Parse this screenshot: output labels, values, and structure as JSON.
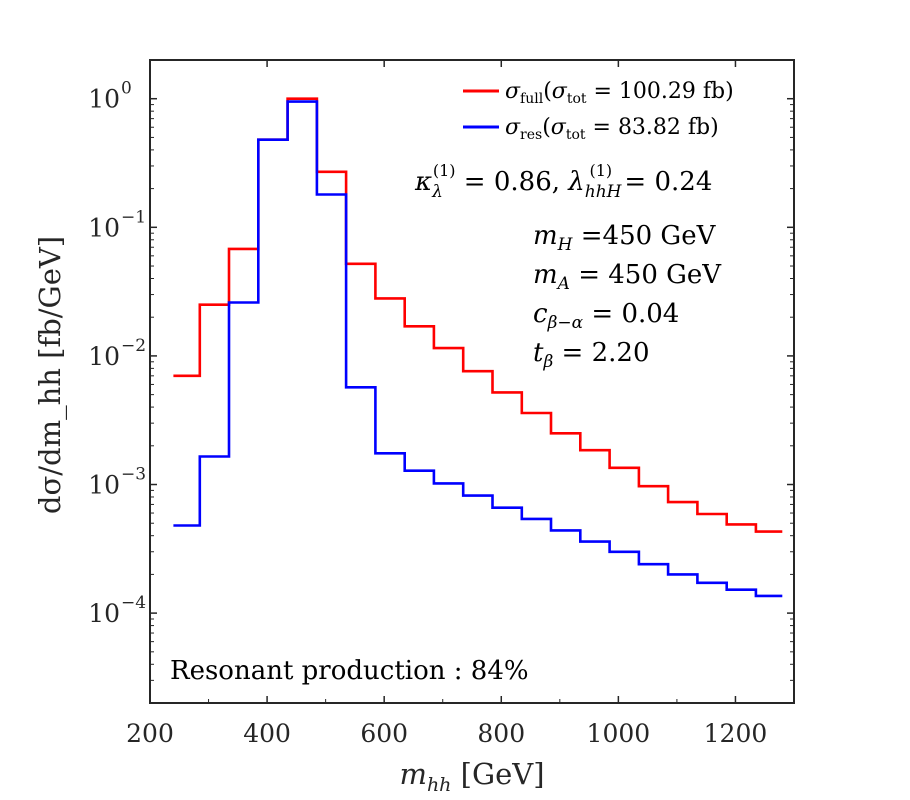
{
  "chart_data": {
    "type": "line",
    "step": true,
    "y_scale": "log",
    "xlim": [
      200,
      1300
    ],
    "ylim": [
      2e-05,
      2
    ],
    "xticks": [
      200,
      400,
      600,
      800,
      1000,
      1200
    ],
    "yticks": [
      0.0001,
      0.001,
      0.01,
      0.1,
      1
    ],
    "xtick_labels": [
      "200",
      "400",
      "600",
      "800",
      "1000",
      "1200"
    ],
    "ytick_labels": [
      {
        "base": "10",
        "exp": "−4"
      },
      {
        "base": "10",
        "exp": "−3"
      },
      {
        "base": "10",
        "exp": "−2"
      },
      {
        "base": "10",
        "exp": "−1"
      },
      {
        "base": "10",
        "exp": "0"
      }
    ],
    "xlabel": {
      "var": "m",
      "sub": "hh",
      "unit": "[GeV]"
    },
    "ylabel": "dσ/dm_hh [fb/GeV]",
    "bin_edges": [
      240,
      285,
      335,
      385,
      435,
      485,
      535,
      585,
      635,
      685,
      735,
      785,
      835,
      885,
      935,
      985,
      1035,
      1085,
      1135,
      1185,
      1235,
      1280
    ],
    "series": [
      {
        "name": "σ_full",
        "legend": {
          "sym": "σ",
          "sub": "full",
          "tot_sym": "σ",
          "tot_sub": "tot",
          "value": "100.29 fb"
        },
        "color": "#ff0000",
        "values": [
          0.007,
          0.025,
          0.068,
          0.48,
          1.0,
          0.27,
          0.052,
          0.028,
          0.017,
          0.0115,
          0.0076,
          0.0052,
          0.0036,
          0.0025,
          0.00185,
          0.00135,
          0.00097,
          0.00073,
          0.00059,
          0.00049,
          0.00043
        ]
      },
      {
        "name": "σ_res",
        "legend": {
          "sym": "σ",
          "sub": "res",
          "tot_sym": "σ",
          "tot_sub": "tot",
          "value": "83.82 fb"
        },
        "color": "#0000ff",
        "values": [
          0.00048,
          0.00165,
          0.026,
          0.48,
          0.95,
          0.18,
          0.0057,
          0.00175,
          0.00128,
          0.00102,
          0.00082,
          0.00066,
          0.00054,
          0.00044,
          0.00036,
          0.0003,
          0.00024,
          0.0002,
          0.000172,
          0.000152,
          0.000136
        ]
      }
    ],
    "annotations": {
      "couplings": {
        "kappa_value": "0.86",
        "lambda_value": "0.24"
      },
      "params": [
        {
          "sym": "m",
          "sub": "H",
          "eq": " =450",
          "unit": " GeV"
        },
        {
          "sym": "m",
          "sub": "A",
          "eq": " = 450",
          "unit": " GeV"
        },
        {
          "sym": "c",
          "sub": "β−α",
          "eq": " = 0.04",
          "unit": ""
        },
        {
          "sym": "t",
          "sub": "β",
          "eq": " = 2.20",
          "unit": ""
        }
      ],
      "resonant": "Resonant production : 84%"
    }
  }
}
